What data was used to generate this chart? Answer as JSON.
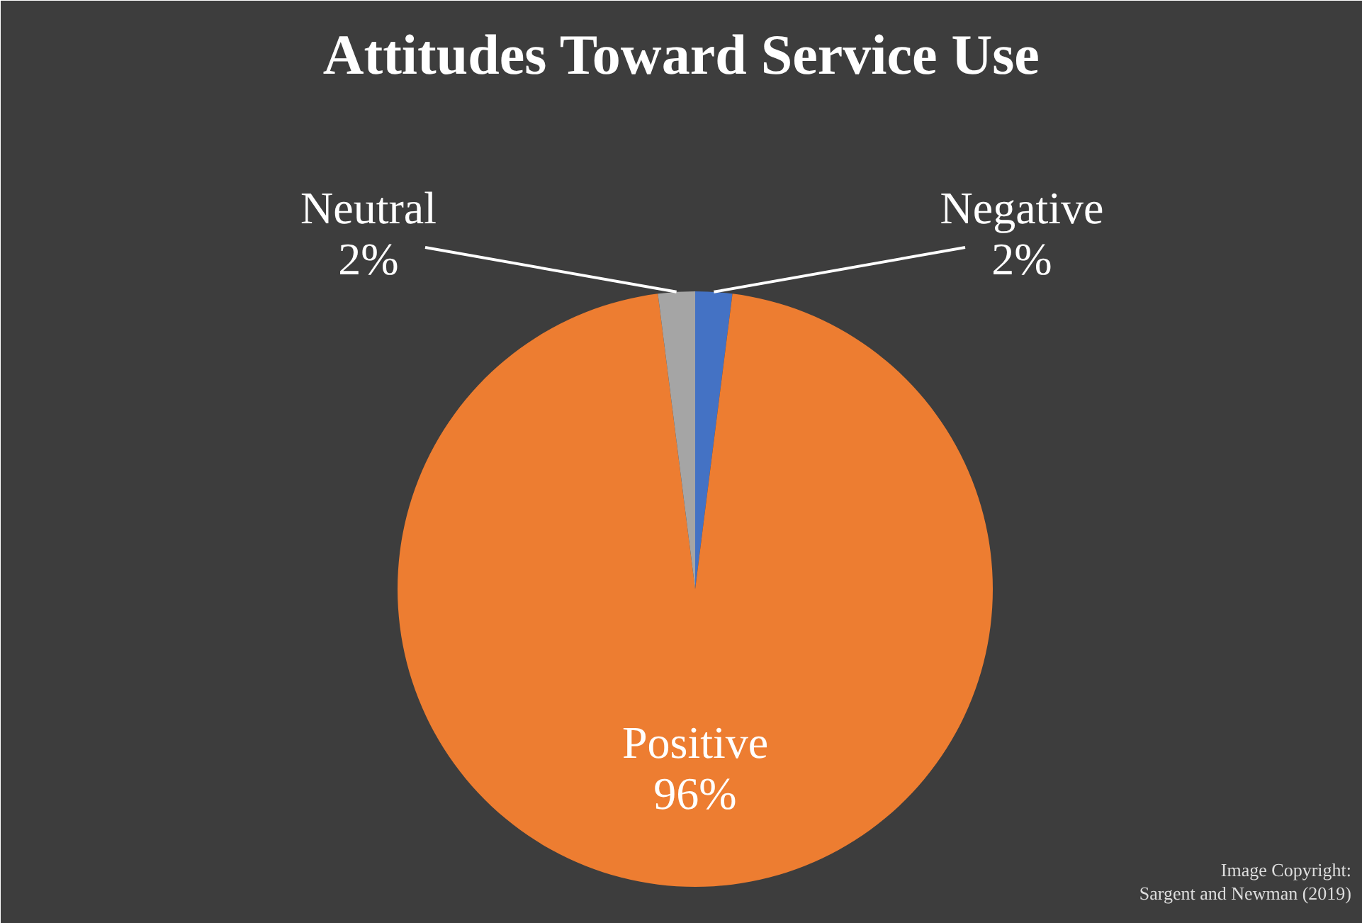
{
  "chart_data": {
    "type": "pie",
    "title": "Attitudes Toward Service Use",
    "categories": [
      "Negative",
      "Positive",
      "Neutral"
    ],
    "values": [
      2,
      96,
      2
    ],
    "colors": [
      "#4472c4",
      "#ed7d31",
      "#a5a5a5"
    ],
    "value_labels": [
      "2%",
      "96%",
      "2%"
    ],
    "annotations": [
      "Image Copyright:\nSargent and Newman (2019)"
    ]
  }
}
